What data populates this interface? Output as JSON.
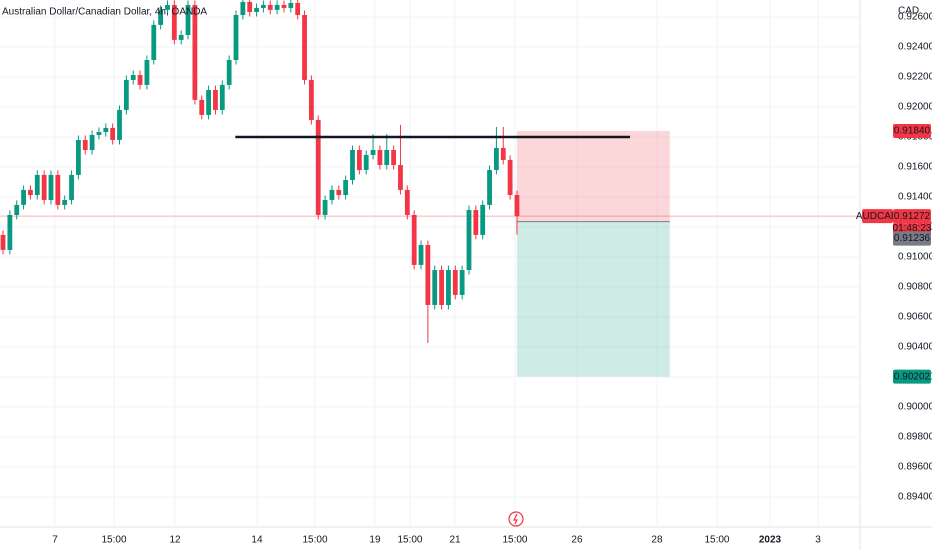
{
  "chart_data": {
    "type": "candlestick",
    "title": "Australian Dollar/Canadian Dollar, 4h, OANDA",
    "unit_label": "CAD",
    "symbol": "AUDCAD",
    "countdown": "01:48:23",
    "up_color": "#089981",
    "down_color": "#f23645",
    "grid": true,
    "open": [
      0.91147,
      0.91047,
      0.9128,
      0.91347,
      0.91447,
      0.91413,
      0.91547,
      0.9138,
      0.91547,
      0.91347,
      0.9138,
      0.91547,
      0.9178,
      0.91713,
      0.91813,
      0.91833,
      0.9186,
      0.9178,
      0.9198,
      0.9218,
      0.92213,
      0.92147,
      0.92313,
      0.92547,
      0.92647,
      0.9268,
      0.92447,
      0.9248,
      0.9268,
      0.92047,
      0.91947,
      0.92113,
      0.9198,
      0.92147,
      0.92313,
      0.92613,
      0.927,
      0.92633,
      0.9266,
      0.9268,
      0.92647,
      0.9268,
      0.9266,
      0.92693,
      0.92613,
      0.9218,
      0.91913,
      0.9128,
      0.9138,
      0.91447,
      0.91413,
      0.91513,
      0.91713,
      0.9158,
      0.9168,
      0.91713,
      0.91613,
      0.91713,
      0.91613,
      0.91447,
      0.9128,
      0.90947,
      0.9108,
      0.9068,
      0.90913,
      0.9068,
      0.90913,
      0.90747,
      0.90913,
      0.91313,
      0.91147,
      0.91347,
      0.9158,
      0.91727,
      0.91647,
      0.91413
    ],
    "high": [
      0.91177,
      0.9131,
      0.91377,
      0.91477,
      0.91477,
      0.91577,
      0.91577,
      0.91577,
      0.91577,
      0.9141,
      0.91577,
      0.9181,
      0.9181,
      0.91843,
      0.91863,
      0.9189,
      0.9189,
      0.9201,
      0.9221,
      0.92243,
      0.92243,
      0.92343,
      0.92577,
      0.92677,
      0.9271,
      0.9271,
      0.9251,
      0.9271,
      0.9271,
      0.92077,
      0.92143,
      0.92143,
      0.92177,
      0.92343,
      0.92643,
      0.9273,
      0.9273,
      0.9269,
      0.9271,
      0.9271,
      0.9271,
      0.9271,
      0.92723,
      0.92723,
      0.92643,
      0.9221,
      0.91943,
      0.9141,
      0.91477,
      0.91477,
      0.91543,
      0.91743,
      0.91743,
      0.9171,
      0.9182,
      0.91743,
      0.9182,
      0.91743,
      0.9188,
      0.91477,
      0.9131,
      0.9111,
      0.9111,
      0.90943,
      0.90943,
      0.90943,
      0.90943,
      0.90943,
      0.91343,
      0.91343,
      0.91377,
      0.9161,
      0.91867,
      0.91867,
      0.91677,
      0.91443
    ],
    "low": [
      0.91017,
      0.91017,
      0.9125,
      0.91317,
      0.91383,
      0.91383,
      0.9135,
      0.9135,
      0.91317,
      0.91317,
      0.9135,
      0.91517,
      0.91683,
      0.91683,
      0.91783,
      0.91803,
      0.9175,
      0.9175,
      0.9195,
      0.9215,
      0.92117,
      0.92117,
      0.92283,
      0.92517,
      0.92617,
      0.92417,
      0.92417,
      0.9245,
      0.92017,
      0.91917,
      0.91917,
      0.9195,
      0.9195,
      0.92117,
      0.92283,
      0.92583,
      0.92603,
      0.92603,
      0.9263,
      0.92617,
      0.92617,
      0.9263,
      0.9263,
      0.92583,
      0.9215,
      0.91883,
      0.9125,
      0.9125,
      0.9135,
      0.91383,
      0.91383,
      0.91483,
      0.9155,
      0.9155,
      0.9165,
      0.91583,
      0.91583,
      0.91583,
      0.91417,
      0.9125,
      0.90917,
      0.90917,
      0.90427,
      0.9065,
      0.9065,
      0.9065,
      0.90717,
      0.90717,
      0.90883,
      0.91117,
      0.91117,
      0.91317,
      0.9155,
      0.91617,
      0.91383,
      0.9115
    ],
    "close": [
      0.91047,
      0.9128,
      0.91347,
      0.91447,
      0.91413,
      0.91547,
      0.9138,
      0.91547,
      0.91347,
      0.9138,
      0.91547,
      0.9178,
      0.91713,
      0.91813,
      0.91833,
      0.9186,
      0.9178,
      0.9198,
      0.9218,
      0.92213,
      0.92147,
      0.92313,
      0.92547,
      0.92647,
      0.9268,
      0.92447,
      0.9248,
      0.9268,
      0.92047,
      0.91947,
      0.92113,
      0.9198,
      0.92147,
      0.92313,
      0.92613,
      0.927,
      0.92633,
      0.9266,
      0.9268,
      0.92647,
      0.9268,
      0.9266,
      0.92693,
      0.92613,
      0.9218,
      0.91913,
      0.9128,
      0.9138,
      0.91447,
      0.91413,
      0.91513,
      0.91713,
      0.9158,
      0.9168,
      0.91713,
      0.91613,
      0.91713,
      0.91613,
      0.91447,
      0.9128,
      0.90947,
      0.9108,
      0.9068,
      0.90913,
      0.9068,
      0.90913,
      0.90747,
      0.90913,
      0.91313,
      0.91147,
      0.91347,
      0.9158,
      0.91727,
      0.91647,
      0.91413,
      0.91272
    ],
    "xlim": [
      -0.44,
      125.06
    ],
    "xticks": [
      {
        "value": 7.59,
        "label": "7"
      },
      {
        "value": 16.2,
        "label": "15:00"
      },
      {
        "value": 25.1,
        "label": "12"
      },
      {
        "value": 37.06,
        "label": "14"
      },
      {
        "value": 45.53,
        "label": "15:00"
      },
      {
        "value": 54.28,
        "label": "19"
      },
      {
        "value": 59.39,
        "label": "15:00"
      },
      {
        "value": 65.96,
        "label": "21"
      },
      {
        "value": 74.71,
        "label": "15:00"
      },
      {
        "value": 83.76,
        "label": "26"
      },
      {
        "value": 95.43,
        "label": "28"
      },
      {
        "value": 104.19,
        "label": "15:00"
      },
      {
        "value": 111.92,
        "label": "2023"
      },
      {
        "value": 118.93,
        "label": "3"
      }
    ],
    "ylim": [
      0.892,
      0.92713
    ],
    "yticks": [
      {
        "value": 0.926,
        "label": "0.92600"
      },
      {
        "value": 0.924,
        "label": "0.92400"
      },
      {
        "value": 0.922,
        "label": "0.92200"
      },
      {
        "value": 0.92,
        "label": "0.92000"
      },
      {
        "value": 0.918,
        "label": "0.91800"
      },
      {
        "value": 0.916,
        "label": "0.91600"
      },
      {
        "value": 0.914,
        "label": "0.91400"
      },
      {
        "value": 0.912,
        "label": "0.91200"
      },
      {
        "value": 0.91,
        "label": "0.91000"
      },
      {
        "value": 0.908,
        "label": "0.90800"
      },
      {
        "value": 0.906,
        "label": "0.90600"
      },
      {
        "value": 0.904,
        "label": "0.90400"
      },
      {
        "value": 0.902,
        "label": "0.90200"
      },
      {
        "value": 0.9,
        "label": "0.90000"
      },
      {
        "value": 0.898,
        "label": "0.89800"
      },
      {
        "value": 0.896,
        "label": "0.89600"
      },
      {
        "value": 0.894,
        "label": "0.89400"
      }
    ],
    "last_price": {
      "value": 0.91272,
      "label": "0.91272"
    },
    "level": {
      "value": 0.918,
      "start": 33.9,
      "end": 91.5
    },
    "position": {
      "start": 75,
      "end": 97.3,
      "stop": {
        "value": 0.9184,
        "label": "0.91840"
      },
      "entry": {
        "value": 0.91236,
        "label": "0.91236"
      },
      "target": {
        "value": 0.90202,
        "label": "0.90202"
      }
    }
  }
}
